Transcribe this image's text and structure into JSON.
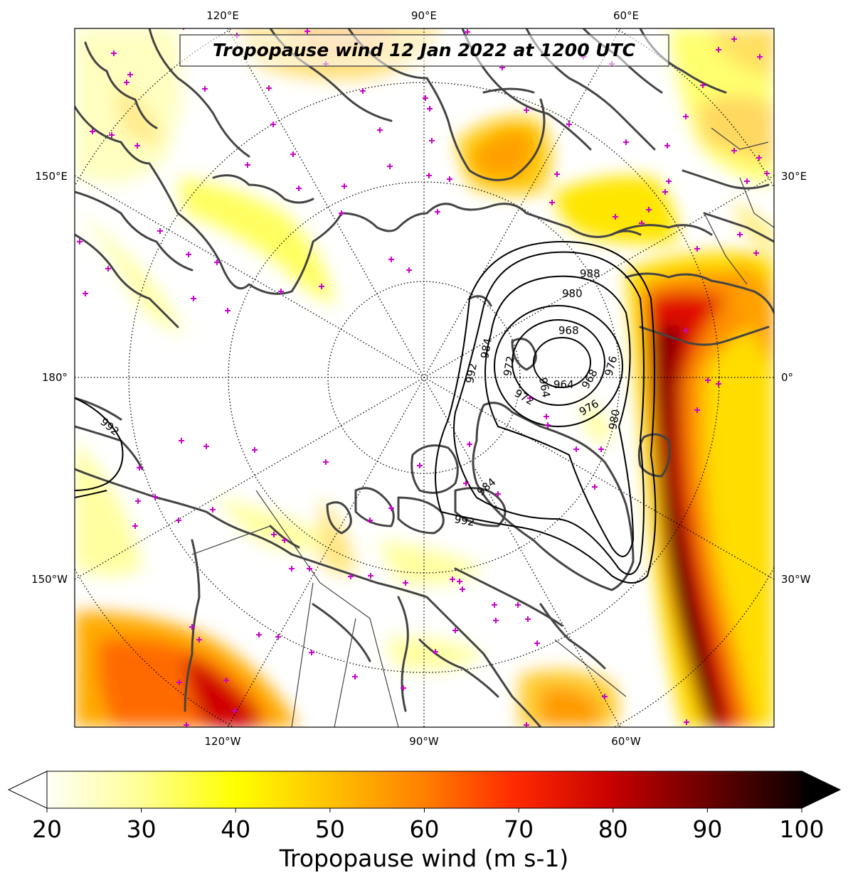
{
  "title": "Tropopause wind 12 Jan 2022 at 1200 UTC",
  "longitude_labels": {
    "top": [
      "120°E",
      "90°E",
      "60°E"
    ],
    "bottom": [
      "120°W",
      "90°W",
      "60°W"
    ],
    "left": [
      "150°E",
      "180°",
      "150°W"
    ],
    "right": [
      "30°E",
      "0°",
      "30°W"
    ]
  },
  "colorbar": {
    "label": "Tropopause wind (m s-1)",
    "min": 20,
    "max": 100,
    "ticks": [
      "20",
      "30",
      "40",
      "50",
      "60",
      "70",
      "80",
      "90",
      "100"
    ],
    "extend": "both",
    "colormap": "hot_r"
  },
  "contour_labels": [
    "992",
    "988",
    "984",
    "980",
    "976",
    "972",
    "968",
    "964",
    "992",
    "988",
    "984",
    "980",
    "976",
    "972",
    "968",
    "964",
    "992",
    "984",
    "976",
    "980",
    "992"
  ],
  "projection": "north-polar-stereographic",
  "colors": {
    "coastline": "#444444",
    "contour": "#000000",
    "station_marker": "#cc00cc",
    "graticule": "#000000"
  }
}
